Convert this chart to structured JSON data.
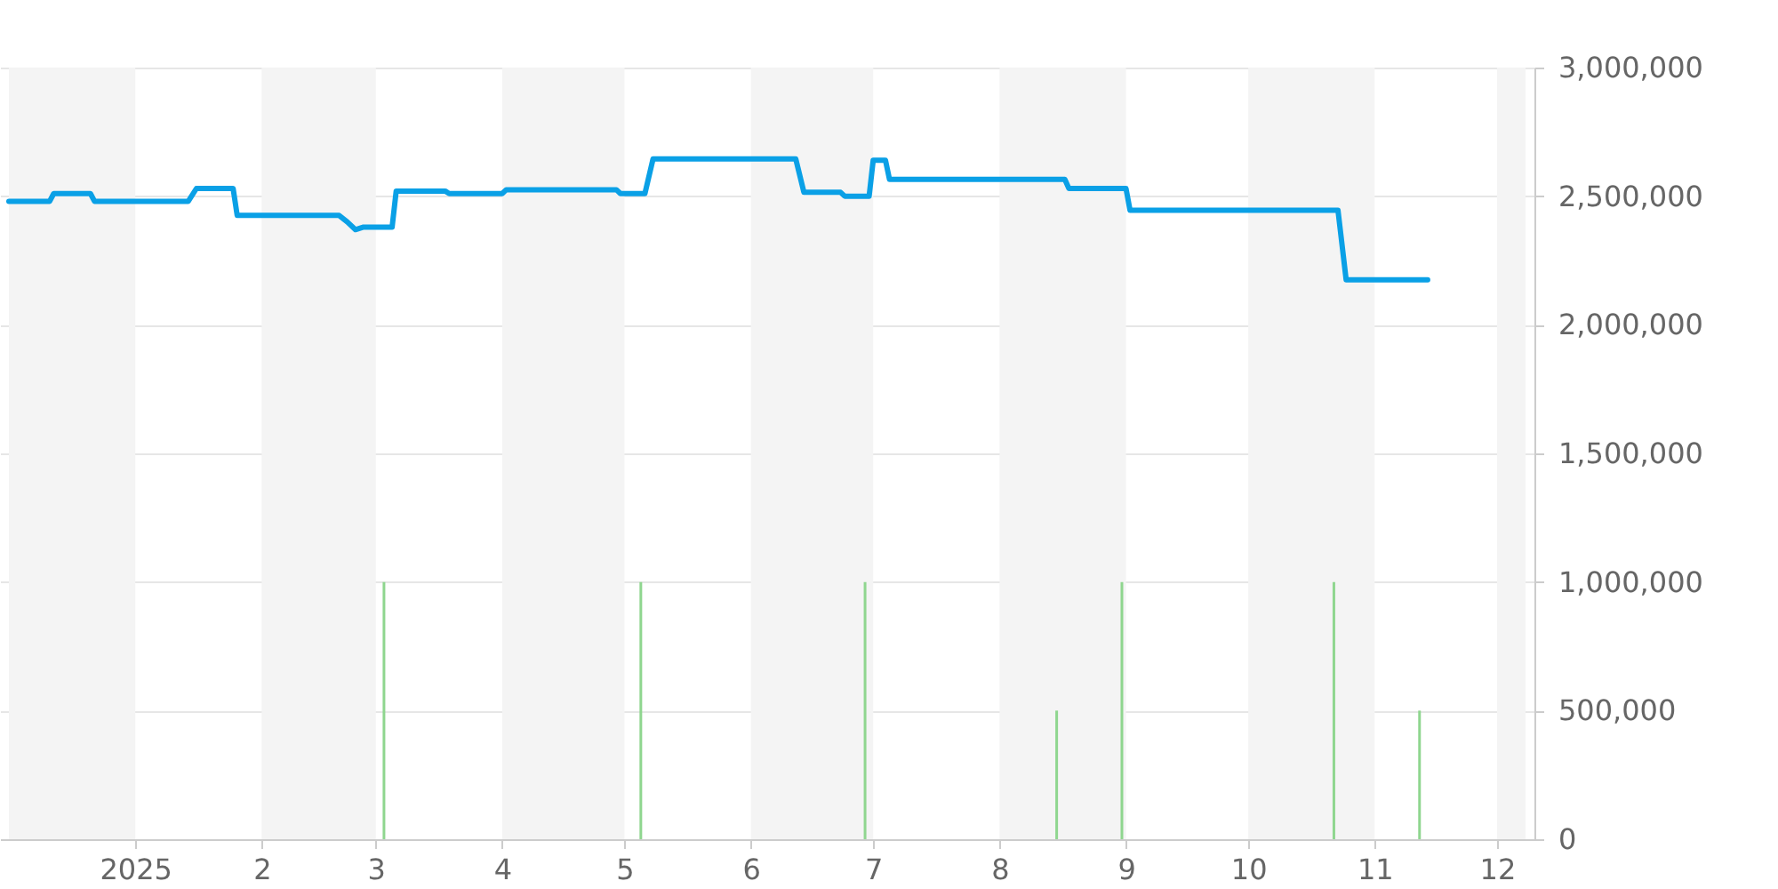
{
  "chart_data": {
    "type": "line",
    "xlim": [
      "2024-12-01",
      "2025-12-08"
    ],
    "xticks": [
      {
        "value": "2025-01-01",
        "label": "2025"
      },
      {
        "value": "2025-02-01",
        "label": "2"
      },
      {
        "value": "2025-03-01",
        "label": "3"
      },
      {
        "value": "2025-04-01",
        "label": "4"
      },
      {
        "value": "2025-05-01",
        "label": "5"
      },
      {
        "value": "2025-06-01",
        "label": "6"
      },
      {
        "value": "2025-07-01",
        "label": "7"
      },
      {
        "value": "2025-08-01",
        "label": "8"
      },
      {
        "value": "2025-09-01",
        "label": "9"
      },
      {
        "value": "2025-10-01",
        "label": "10"
      },
      {
        "value": "2025-11-01",
        "label": "11"
      },
      {
        "value": "2025-12-01",
        "label": "12"
      }
    ],
    "ylim": [
      0,
      3000000
    ],
    "yticks": [
      0,
      {
        "value": 500000,
        "label": "500,000"
      },
      {
        "value": 1000000,
        "label": "1,000,000"
      },
      {
        "value": 1500000,
        "label": "1,500,000"
      },
      {
        "value": 2000000,
        "label": "2,000,000"
      },
      {
        "value": 2500000,
        "label": "2,500,000"
      },
      {
        "value": 3000000,
        "label": "3,000,000"
      }
    ],
    "grid": "y",
    "marker": "none",
    "bands": [
      {
        "axis": "x",
        "from": "2024-12-01",
        "to": "2025-01-01",
        "color": "#f4f4f4"
      },
      {
        "axis": "x",
        "from": "2025-02-01",
        "to": "2025-03-01",
        "color": "#f4f4f4"
      },
      {
        "axis": "x",
        "from": "2025-04-01",
        "to": "2025-05-01",
        "color": "#f4f4f4"
      },
      {
        "axis": "x",
        "from": "2025-06-01",
        "to": "2025-07-01",
        "color": "#f4f4f4"
      },
      {
        "axis": "x",
        "from": "2025-08-01",
        "to": "2025-09-01",
        "color": "#f4f4f4"
      },
      {
        "axis": "x",
        "from": "2025-10-01",
        "to": "2025-11-01",
        "color": "#f4f4f4"
      },
      {
        "axis": "x",
        "from": "2025-12-01",
        "to": "2025-12-08",
        "color": "#f4f4f4"
      }
    ],
    "series": [
      {
        "type": "bar",
        "color": "#8fd68f",
        "x": [
          "2025-03-03",
          "2025-05-05",
          "2025-06-29",
          "2025-08-15",
          "2025-08-31",
          "2025-10-22",
          "2025-11-12"
        ],
        "values": [
          1000000,
          1000000,
          1000000,
          500000,
          1000000,
          1000000,
          500000
        ]
      },
      {
        "color": "#0aa0e6",
        "x": [
          "2024-12-01",
          "2024-12-11",
          "2024-12-12",
          "2024-12-21",
          "2024-12-22",
          "2025-01-14",
          "2025-01-16",
          "2025-01-25",
          "2025-01-26",
          "2025-02-20",
          "2025-02-22",
          "2025-02-24",
          "2025-02-26",
          "2025-03-05",
          "2025-03-06",
          "2025-03-18",
          "2025-03-19",
          "2025-04-01",
          "2025-04-02",
          "2025-04-29",
          "2025-04-30",
          "2025-05-06",
          "2025-05-08",
          "2025-06-12",
          "2025-06-14",
          "2025-06-23",
          "2025-06-24",
          "2025-06-30",
          "2025-07-01",
          "2025-07-04",
          "2025-07-05",
          "2025-08-17",
          "2025-08-18",
          "2025-09-01",
          "2025-09-02",
          "2025-10-23",
          "2025-10-25",
          "2025-11-14"
        ],
        "values": [
          2480000,
          2480000,
          2510000,
          2510000,
          2480000,
          2480000,
          2530000,
          2530000,
          2425000,
          2425000,
          2400000,
          2370000,
          2380000,
          2380000,
          2520000,
          2520000,
          2510000,
          2510000,
          2525000,
          2525000,
          2510000,
          2510000,
          2645000,
          2645000,
          2515000,
          2515000,
          2500000,
          2500000,
          2640000,
          2640000,
          2565000,
          2565000,
          2530000,
          2530000,
          2445000,
          2445000,
          2175000,
          2175000
        ]
      }
    ]
  }
}
